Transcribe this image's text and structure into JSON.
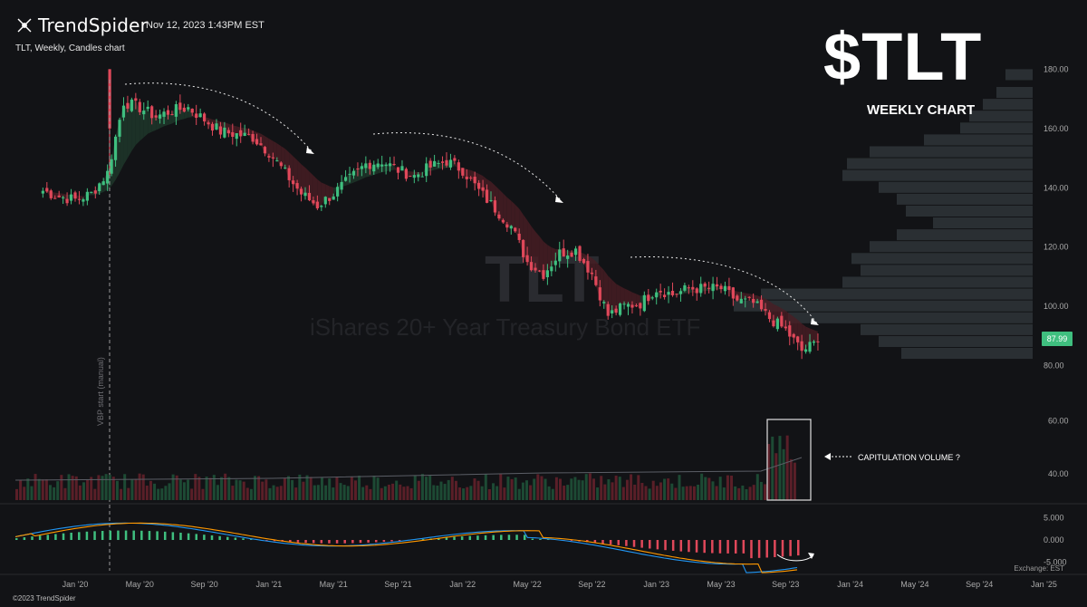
{
  "header": {
    "brand": "TrendSpider",
    "timestamp": "Nov 12, 2023 1:43PM EST",
    "subtitle": "TLT, Weekly, Candles chart"
  },
  "overlay": {
    "big_title": "$TLT",
    "big_subtitle": "WEEKLY CHART",
    "watermark_ticker": "TLT",
    "watermark_name": "iShares 20+ Year Treasury Bond ETF",
    "capitulation_label": "CAPITULATION VOLUME ?",
    "vpvr_label": "VBP start (manual)",
    "price_badge": "87.99",
    "exchange": "Exchange: EST",
    "footer": "©2023 TrendSpider"
  },
  "colors": {
    "up": "#3fbf7f",
    "down": "#e0485a",
    "background": "#121316",
    "vpvr": "#2e3336",
    "macd_line": "#2196f3",
    "signal_line": "#ff9800"
  },
  "chart_data": [
    {
      "type": "candlestick",
      "title": "TLT, Weekly, Candles chart",
      "x_axis_ticks": [
        "Jan '20",
        "May '20",
        "Sep '20",
        "Jan '21",
        "May '21",
        "Sep '21",
        "Jan '22",
        "May '22",
        "Sep '22",
        "Jan '23",
        "May '23",
        "Sep '23",
        "Jan '24",
        "May '24",
        "Sep '24",
        "Jan '25"
      ],
      "y_axis_ticks": [
        80.0,
        100.0,
        120.0,
        140.0,
        160.0,
        180.0
      ],
      "ylim": [
        75,
        185
      ],
      "close_path": {
        "dates": [
          "2019-11",
          "2019-12",
          "2020-01",
          "2020-02",
          "2020-03",
          "2020-04",
          "2020-05",
          "2020-06",
          "2020-07",
          "2020-08",
          "2020-09",
          "2020-10",
          "2020-11",
          "2020-12",
          "2021-01",
          "2021-02",
          "2021-03",
          "2021-04",
          "2021-05",
          "2021-06",
          "2021-07",
          "2021-08",
          "2021-09",
          "2021-10",
          "2021-11",
          "2021-12",
          "2022-01",
          "2022-02",
          "2022-03",
          "2022-04",
          "2022-05",
          "2022-06",
          "2022-07",
          "2022-08",
          "2022-09",
          "2022-10",
          "2022-11",
          "2022-12",
          "2023-01",
          "2023-02",
          "2023-03",
          "2023-04",
          "2023-05",
          "2023-06",
          "2023-07",
          "2023-08",
          "2023-09",
          "2023-10",
          "2023-11"
        ],
        "close": [
          139,
          137,
          136,
          138,
          145,
          169,
          167,
          164,
          166,
          167,
          163,
          159,
          158,
          157,
          152,
          145,
          138,
          134,
          138,
          143,
          148,
          149,
          146,
          144,
          147,
          149,
          146,
          139,
          133,
          127,
          115,
          111,
          118,
          119,
          111,
          97,
          100,
          101,
          106,
          104,
          106,
          106,
          106,
          102,
          101,
          96,
          92,
          85,
          88
        ]
      },
      "last_price": 87.99,
      "annotations": [
        "$TLT",
        "WEEKLY CHART"
      ]
    },
    {
      "type": "bar",
      "title": "Volume",
      "y_axis_ticks": [
        40.0,
        60.0
      ],
      "annotation": "CAPITULATION VOLUME ?"
    },
    {
      "type": "line",
      "title": "MACD",
      "y_axis_ticks": [
        5.0,
        0.0,
        -5.0
      ],
      "series": [
        {
          "values_hint": "MACD oscillates: peak near +5 in May '20, troughs near -5 around Jun '22 and Oct '23"
        },
        {
          "values_hint": "Signal line follows MACD"
        }
      ]
    }
  ]
}
